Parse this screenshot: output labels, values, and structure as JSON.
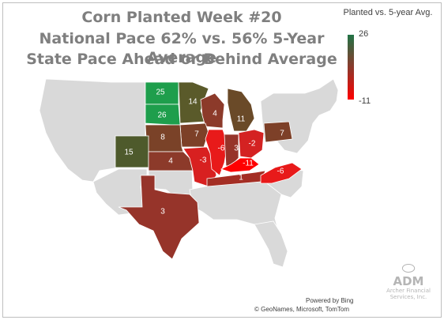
{
  "title_lines": [
    "Corn Planted Week #20",
    "National Pace 62% vs. 56% 5-Year Average",
    "State Pace Ahead or Behind Average"
  ],
  "legend": {
    "title": "Planted vs. 5-year Avg.",
    "max": "26",
    "min": "-11",
    "color_high": "#217346",
    "color_mid": "#8b3a2c",
    "color_low": "#ff0000"
  },
  "attribution": {
    "powered_by": "Powered by Bing",
    "credits": "© GeoNames, Microsoft, TomTom"
  },
  "brand": {
    "name": "ADM",
    "sub1": "Archer Financial",
    "sub2": "Services, Inc."
  },
  "colors": {
    "base_state": "#d9d9d9",
    "border": "#ffffff"
  },
  "states": [
    {
      "name": "North Dakota",
      "value": 25,
      "color": "#1e9e4c"
    },
    {
      "name": "South Dakota",
      "value": 26,
      "color": "#1e9e4c"
    },
    {
      "name": "Minnesota",
      "value": 14,
      "color": "#5a5a2a"
    },
    {
      "name": "Wisconsin",
      "value": 4,
      "color": "#8c3a2a"
    },
    {
      "name": "Michigan",
      "value": 11,
      "color": "#6a4a28"
    },
    {
      "name": "Iowa",
      "value": 7,
      "color": "#7d4028"
    },
    {
      "name": "Nebraska",
      "value": 8,
      "color": "#7a4228"
    },
    {
      "name": "Colorado",
      "value": 15,
      "color": "#4e5a2c"
    },
    {
      "name": "Kansas",
      "value": 4,
      "color": "#8c3a2a"
    },
    {
      "name": "Missouri",
      "value": -3,
      "color": "#d82020"
    },
    {
      "name": "Illinois",
      "value": -6,
      "color": "#e81a1a"
    },
    {
      "name": "Indiana",
      "value": 3,
      "color": "#96342a"
    },
    {
      "name": "Ohio",
      "value": -2,
      "color": "#d42222"
    },
    {
      "name": "Pennsylvania",
      "value": 7,
      "color": "#7d4028"
    },
    {
      "name": "Kentucky",
      "value": -11,
      "color": "#ff0000"
    },
    {
      "name": "Tennessee",
      "value": 1,
      "color": "#a42e24"
    },
    {
      "name": "North Carolina",
      "value": -6,
      "color": "#e81a1a"
    },
    {
      "name": "Texas",
      "value": 3,
      "color": "#96342a"
    }
  ]
}
